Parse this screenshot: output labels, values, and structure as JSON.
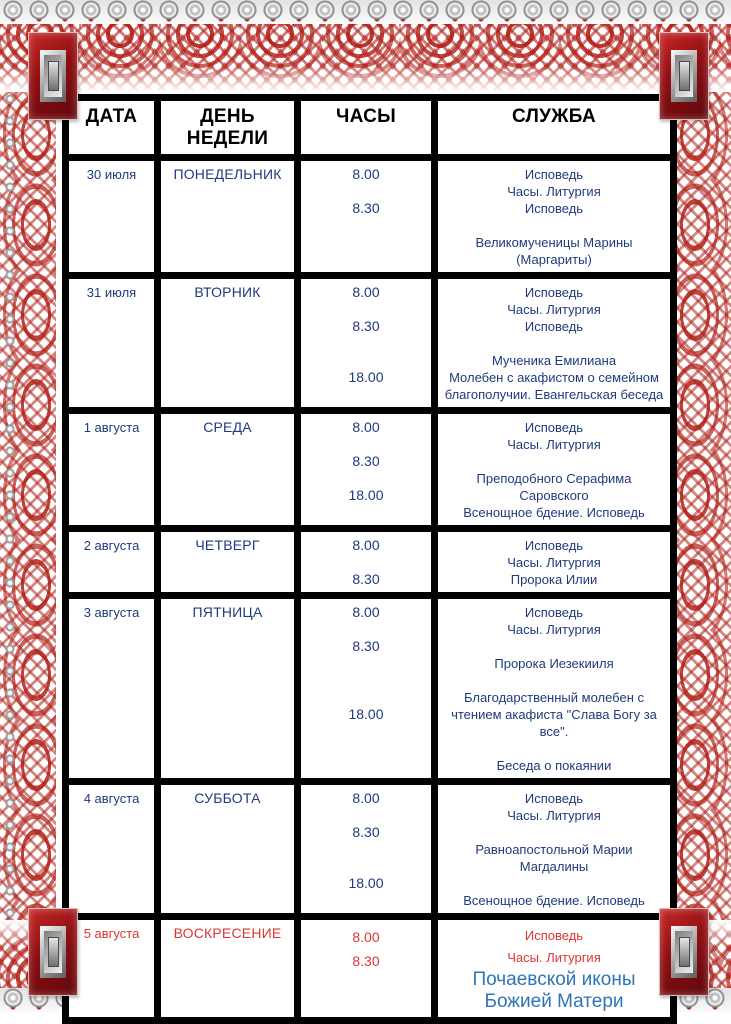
{
  "document": {
    "kind": "church-service-schedule-poster",
    "language": "ru"
  },
  "colors": {
    "body_text": "#1F3A7D",
    "sunday_red": "#DE3533",
    "accent_blue": "#2E75B6",
    "grid": "#000000",
    "ornament_red": "#B2251F",
    "ornament_silver": "#C9C9C9"
  },
  "table": {
    "headers": [
      "ДАТА",
      "ДЕНЬ НЕДЕЛИ",
      "ЧАСЫ",
      "СЛУЖБА"
    ],
    "rows": [
      {
        "date": "30 июля",
        "day": "ПОНЕДЕЛЬНИК",
        "color": "navy",
        "hours": [
          "8.00",
          "",
          "8.30"
        ],
        "services": [
          {
            "text": "Исповедь"
          },
          {
            "text": "Часы. Литургия"
          },
          {
            "text": "Исповедь"
          },
          {
            "text": ""
          },
          {
            "text": "Великомученицы Марины (Маргариты)"
          }
        ]
      },
      {
        "date": "31 июля",
        "day": "ВТОРНИК",
        "color": "navy",
        "hours": [
          "8.00",
          "",
          "8.30",
          "",
          "",
          "18.00"
        ],
        "services": [
          {
            "text": "Исповедь"
          },
          {
            "text": "Часы. Литургия"
          },
          {
            "text": "Исповедь"
          },
          {
            "text": ""
          },
          {
            "text": "Мученика Емилиана"
          },
          {
            "text": "Молебен с акафистом о семейном благополучии. Евангельская беседа"
          }
        ]
      },
      {
        "date": "1 августа",
        "day": "СРЕДА",
        "color": "navy",
        "hours": [
          "8.00",
          "",
          "8.30",
          "",
          "18.00"
        ],
        "services": [
          {
            "text": "Исповедь"
          },
          {
            "text": "Часы. Литургия"
          },
          {
            "text": ""
          },
          {
            "text": "Преподобного Серафима Саровского"
          },
          {
            "text": "Всенощное бдение. Исповедь"
          }
        ]
      },
      {
        "date": "2 августа",
        "day": "ЧЕТВЕРГ",
        "color": "navy",
        "hours": [
          "8.00",
          "",
          "8.30"
        ],
        "services": [
          {
            "text": "Исповедь"
          },
          {
            "text": "Часы. Литургия"
          },
          {
            "text": "Пророка Илии"
          }
        ]
      },
      {
        "date": "3 августа",
        "day": "ПЯТНИЦА",
        "color": "navy",
        "hours": [
          "8.00",
          "",
          "8.30",
          "",
          "",
          "",
          "18.00"
        ],
        "services": [
          {
            "text": "Исповедь"
          },
          {
            "text": "Часы. Литургия"
          },
          {
            "text": ""
          },
          {
            "text": "Пророка Иезекииля"
          },
          {
            "text": ""
          },
          {
            "text": "Благодарственный молебен с чтением акафиста \"Слава Богу за все\"."
          },
          {
            "text": ""
          },
          {
            "text": "Беседа о покаянии"
          }
        ]
      },
      {
        "date": "4 августа",
        "day": "СУББОТА",
        "color": "navy",
        "hours": [
          "8.00",
          "",
          "8.30",
          "",
          "",
          "18.00"
        ],
        "services": [
          {
            "text": "Исповедь"
          },
          {
            "text": "Часы. Литургия"
          },
          {
            "text": ""
          },
          {
            "text": "Равноапостольной Марии Магдалины"
          },
          {
            "text": ""
          },
          {
            "text": "Всенощное бдение. Исповедь"
          }
        ]
      },
      {
        "date": "5 августа",
        "day": "ВОСКРЕСЕНИЕ",
        "color": "red",
        "hours": [
          "8.00",
          "8.30"
        ],
        "services": [
          {
            "text": "Исповедь"
          },
          {
            "text": "Часы. Литургия"
          },
          {
            "text": "Почаевской иконы Божией Матери",
            "style": "accent"
          }
        ]
      }
    ]
  }
}
